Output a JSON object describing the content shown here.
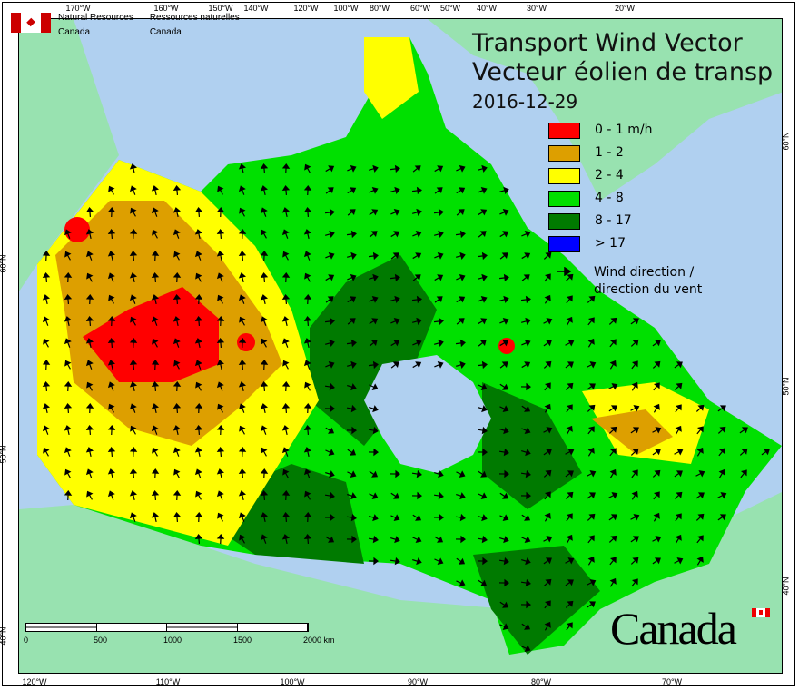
{
  "title": {
    "line1": "Transport Wind Vector",
    "line2": "Vecteur éolien de transp",
    "date": "2016-12-29"
  },
  "agency": {
    "en_line1": "Natural Resources",
    "en_line2": "Canada",
    "fr_line1": "Ressources naturelles",
    "fr_line2": "Canada",
    "logo_icon": "canada-flag-icon"
  },
  "legend": {
    "items": [
      {
        "label": "0 - 1 m/h",
        "color": "#ff0000"
      },
      {
        "label": "1 - 2",
        "color": "#dd9f00"
      },
      {
        "label": "2 - 4",
        "color": "#ffff00"
      },
      {
        "label": "4 - 8",
        "color": "#00e000"
      },
      {
        "label": "8 - 17",
        "color": "#007a00"
      },
      {
        "label": "> 17",
        "color": "#0000ff"
      }
    ],
    "wind_icon": "arrow-icon",
    "wind_line1": "Wind direction /",
    "wind_line2": "direction du vent"
  },
  "axes": {
    "top": [
      "170°W",
      "160°W",
      "150°W",
      "140°W",
      "120°W",
      "100°W",
      "80°W",
      "60°W",
      "50°W",
      "40°W",
      "30°W",
      "20°W"
    ],
    "bottom": [
      "120°W",
      "110°W",
      "100°W",
      "90°W",
      "80°W",
      "70°W"
    ],
    "left": [
      "60°N",
      "50°N",
      "40°N"
    ],
    "right": [
      "60°N",
      "50°N",
      "40°N"
    ]
  },
  "scale": {
    "labels": [
      "0",
      "500",
      "1000",
      "1500",
      "2000 km"
    ]
  },
  "wordmark": "Canada",
  "colors": {
    "water": "#b0d0f0",
    "land": "#98e2b0"
  }
}
